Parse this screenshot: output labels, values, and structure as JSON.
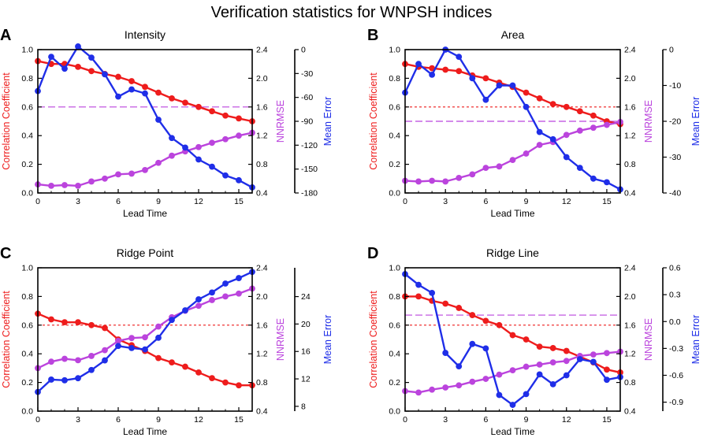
{
  "figure_title": "Verification statistics for WNPSH indices",
  "colors": {
    "cc": "#ee1c1c",
    "nnrmse": "#bb44dd",
    "me": "#1f2ee8",
    "axis": "#000000"
  },
  "chart_data": [
    {
      "type": "line",
      "panel_label": "A",
      "title": "Intensity",
      "xlabel": "Lead Time",
      "x": [
        0,
        1,
        2,
        3,
        4,
        5,
        6,
        7,
        8,
        9,
        10,
        11,
        12,
        13,
        14,
        15,
        16
      ],
      "xticks": [
        0,
        3,
        6,
        9,
        12,
        15
      ],
      "xlim": [
        0,
        16
      ],
      "left_axis": {
        "label": "Correlation Coefficient",
        "ylim": [
          0,
          1
        ],
        "ticks": [
          "0.0",
          "0.2",
          "0.4",
          "0.6",
          "0.8",
          "1.0"
        ]
      },
      "nnrmse_axis": {
        "label": "NNRMSE",
        "ylim": [
          0.4,
          2.4
        ],
        "ticks": [
          "0.4",
          "0.8",
          "1.2",
          "1.6",
          "2.0",
          "2.4"
        ]
      },
      "me_axis": {
        "label": "Mean Error",
        "ylim": [
          -180,
          0
        ],
        "ticks": [
          "-180",
          "-150",
          "-120",
          "-90",
          "-60",
          "-30",
          "0"
        ]
      },
      "series": [
        {
          "name": "Correlation Coefficient",
          "axis": "cc",
          "values": [
            0.92,
            0.9,
            0.9,
            0.88,
            0.85,
            0.83,
            0.81,
            0.78,
            0.74,
            0.7,
            0.66,
            0.63,
            0.6,
            0.57,
            0.54,
            0.52,
            0.5
          ]
        },
        {
          "name": "NNRMSE",
          "axis": "nnrmse",
          "values": [
            0.52,
            0.5,
            0.51,
            0.5,
            0.56,
            0.6,
            0.66,
            0.67,
            0.72,
            0.82,
            0.92,
            0.98,
            1.04,
            1.1,
            1.15,
            1.2,
            1.24
          ]
        },
        {
          "name": "Mean Error",
          "axis": "me",
          "values": [
            -52,
            -9,
            -24,
            4,
            -10,
            -31,
            -59,
            -50,
            -55,
            -88,
            -111,
            -123,
            -138,
            -147,
            -158,
            -164,
            -173
          ]
        }
      ],
      "reference_lines": [
        {
          "axis": "cc",
          "value": 0.6,
          "color_key": "nnrmse",
          "style": "longdash"
        }
      ]
    },
    {
      "type": "line",
      "panel_label": "B",
      "title": "Area",
      "xlabel": "Lead Time",
      "x": [
        0,
        1,
        2,
        3,
        4,
        5,
        6,
        7,
        8,
        9,
        10,
        11,
        12,
        13,
        14,
        15,
        16
      ],
      "xticks": [
        0,
        3,
        6,
        9,
        12,
        15
      ],
      "xlim": [
        0,
        16
      ],
      "left_axis": {
        "label": "Correlation Coefficient",
        "ylim": [
          0,
          1
        ],
        "ticks": [
          "0.0",
          "0.2",
          "0.4",
          "0.6",
          "0.8",
          "1.0"
        ]
      },
      "nnrmse_axis": {
        "label": "NNRMSE",
        "ylim": [
          0.4,
          2.4
        ],
        "ticks": [
          "0.4",
          "0.8",
          "1.2",
          "1.6",
          "2.0",
          "2.4"
        ]
      },
      "me_axis": {
        "label": "Mean Error",
        "ylim": [
          -40,
          0
        ],
        "ticks": [
          "-40",
          "-30",
          "-20",
          "-10",
          "0"
        ]
      },
      "series": [
        {
          "name": "Correlation Coefficient",
          "axis": "cc",
          "values": [
            0.9,
            0.88,
            0.87,
            0.86,
            0.85,
            0.82,
            0.8,
            0.77,
            0.74,
            0.7,
            0.66,
            0.62,
            0.6,
            0.57,
            0.54,
            0.5,
            0.48
          ]
        },
        {
          "name": "NNRMSE",
          "axis": "nnrmse",
          "values": [
            0.57,
            0.56,
            0.57,
            0.56,
            0.61,
            0.66,
            0.75,
            0.77,
            0.86,
            0.95,
            1.07,
            1.11,
            1.21,
            1.27,
            1.31,
            1.35,
            1.39
          ]
        },
        {
          "name": "Mean Error",
          "axis": "me",
          "values": [
            -12,
            -4,
            -7,
            0,
            -2,
            -8,
            -14,
            -10,
            -10,
            -16,
            -23,
            -25,
            -30,
            -33,
            -36,
            -37,
            -39
          ]
        }
      ],
      "reference_lines": [
        {
          "axis": "cc",
          "value": 0.6,
          "color_key": "cc",
          "style": "shortdash"
        },
        {
          "axis": "cc",
          "value": 0.5,
          "color_key": "nnrmse",
          "style": "longdash"
        }
      ]
    },
    {
      "type": "line",
      "panel_label": "C",
      "title": "Ridge Point",
      "xlabel": "Lead Time",
      "x": [
        0,
        1,
        2,
        3,
        4,
        5,
        6,
        7,
        8,
        9,
        10,
        11,
        12,
        13,
        14,
        15,
        16
      ],
      "xticks": [
        0,
        3,
        6,
        9,
        12,
        15
      ],
      "xlim": [
        0,
        16
      ],
      "left_axis": {
        "label": "Correlation Coefficient",
        "ylim": [
          0,
          1
        ],
        "ticks": [
          "0.0",
          "0.2",
          "0.4",
          "0.6",
          "0.8",
          "1.0"
        ]
      },
      "nnrmse_axis": {
        "label": "NNRMSE",
        "ylim": [
          0.4,
          2.4
        ],
        "ticks": [
          "0.4",
          "0.8",
          "1.2",
          "1.6",
          "2.0",
          "2.4"
        ]
      },
      "me_axis": {
        "label": "Mean Error",
        "ylim": [
          7.3,
          28.2
        ],
        "ticks": [
          "8",
          "12",
          "16",
          "20",
          "24"
        ]
      },
      "series": [
        {
          "name": "Correlation Coefficient",
          "axis": "cc",
          "values": [
            0.68,
            0.64,
            0.62,
            0.62,
            0.6,
            0.58,
            0.5,
            0.46,
            0.42,
            0.37,
            0.34,
            0.31,
            0.27,
            0.23,
            0.2,
            0.18,
            0.18
          ]
        },
        {
          "name": "NNRMSE",
          "axis": "nnrmse",
          "values": [
            1.0,
            1.09,
            1.13,
            1.11,
            1.17,
            1.25,
            1.38,
            1.42,
            1.43,
            1.58,
            1.71,
            1.8,
            1.87,
            1.95,
            2.0,
            2.04,
            2.11
          ]
        },
        {
          "name": "Mean Error",
          "axis": "me",
          "values": [
            10.1,
            11.9,
            11.8,
            12.1,
            13.3,
            14.7,
            16.8,
            16.5,
            16.3,
            18.0,
            20.6,
            22.0,
            23.6,
            24.6,
            25.9,
            26.7,
            27.6
          ]
        }
      ],
      "reference_lines": [
        {
          "axis": "cc",
          "value": 0.6,
          "color_key": "cc",
          "style": "shortdash"
        }
      ]
    },
    {
      "type": "line",
      "panel_label": "D",
      "title": "Ridge Line",
      "xlabel": "Lead Time",
      "x": [
        0,
        1,
        2,
        3,
        4,
        5,
        6,
        7,
        8,
        9,
        10,
        11,
        12,
        13,
        14,
        15,
        16
      ],
      "xticks": [
        0,
        3,
        6,
        9,
        12,
        15
      ],
      "xlim": [
        0,
        16
      ],
      "left_axis": {
        "label": "Correlation Coefficient",
        "ylim": [
          0,
          1
        ],
        "ticks": [
          "0.0",
          "0.2",
          "0.4",
          "0.6",
          "0.8",
          "1.0"
        ]
      },
      "nnrmse_axis": {
        "label": "NNRMSE",
        "ylim": [
          0.4,
          2.4
        ],
        "ticks": [
          "0.4",
          "0.8",
          "1.2",
          "1.6",
          "2.0",
          "2.4"
        ]
      },
      "me_axis": {
        "label": "Mean Error",
        "ylim": [
          -1.0,
          0.6
        ],
        "ticks": [
          "-0.9",
          "-0.6",
          "-0.3",
          "0.0",
          "0.3",
          "0.6"
        ]
      },
      "series": [
        {
          "name": "Correlation Coefficient",
          "axis": "cc",
          "values": [
            0.8,
            0.8,
            0.77,
            0.75,
            0.72,
            0.67,
            0.63,
            0.6,
            0.53,
            0.5,
            0.45,
            0.44,
            0.42,
            0.38,
            0.34,
            0.29,
            0.27
          ]
        },
        {
          "name": "NNRMSE",
          "axis": "nnrmse",
          "values": [
            0.68,
            0.66,
            0.7,
            0.73,
            0.76,
            0.81,
            0.85,
            0.91,
            0.97,
            1.02,
            1.05,
            1.08,
            1.1,
            1.17,
            1.19,
            1.21,
            1.23
          ]
        },
        {
          "name": "Mean Error",
          "axis": "me",
          "values": [
            0.53,
            0.41,
            0.32,
            -0.35,
            -0.5,
            -0.25,
            -0.3,
            -0.82,
            -0.93,
            -0.81,
            -0.59,
            -0.7,
            -0.6,
            -0.42,
            -0.45,
            -0.65,
            -0.62
          ]
        }
      ],
      "reference_lines": [
        {
          "axis": "cc",
          "value": 0.6,
          "color_key": "cc",
          "style": "shortdash"
        },
        {
          "axis": "cc",
          "value": 0.67,
          "color_key": "nnrmse",
          "style": "longdash"
        }
      ]
    }
  ]
}
